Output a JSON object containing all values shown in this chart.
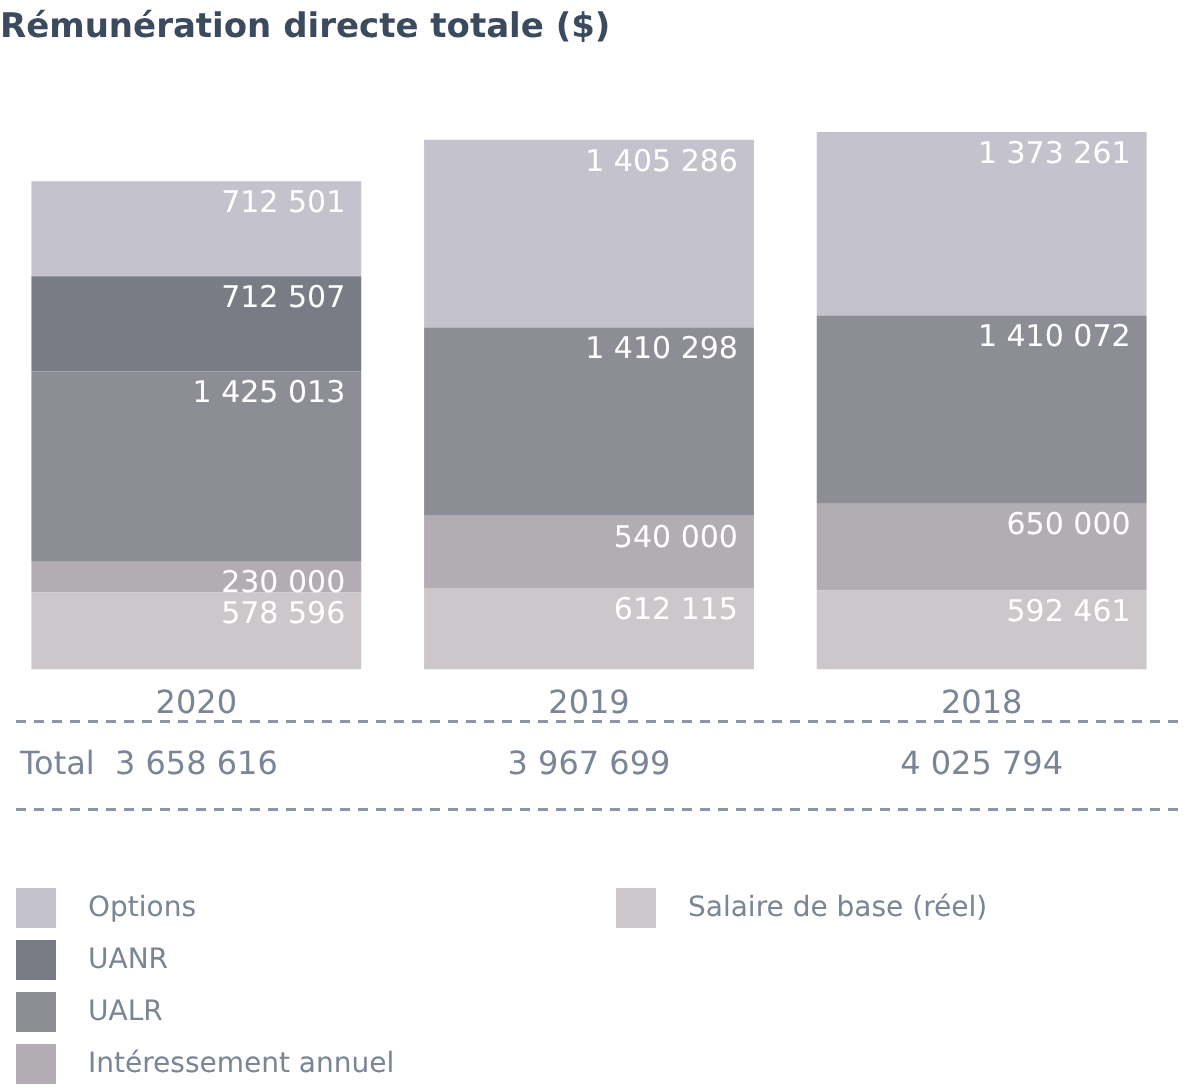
{
  "chart_data": {
    "type": "bar",
    "title": "Rémunération directe totale ($)",
    "stacked": true,
    "categories": [
      "2020",
      "2019",
      "2018"
    ],
    "series": [
      {
        "name": "Salaire de base (réel)",
        "color": "#cbc7ca",
        "values": [
          578596,
          612115,
          592461
        ],
        "value_labels": [
          "578 596",
          "612 115",
          "592 461"
        ]
      },
      {
        "name": "Intéressement annuel",
        "color": "#b1adb2",
        "values": [
          230000,
          540000,
          650000
        ],
        "value_labels": [
          "230 000",
          "540 000",
          "650 000"
        ]
      },
      {
        "name": "UALR",
        "color": "#8d8e95",
        "values": [
          1425013,
          1410298,
          1410072
        ],
        "value_labels": [
          "1 425 013",
          "1 410 298",
          "1 410 072"
        ]
      },
      {
        "name": "UANR",
        "color": "#797c84",
        "values": [
          712507,
          null,
          null
        ],
        "value_labels": [
          "712 507",
          null,
          null
        ]
      },
      {
        "name": "Options",
        "color": "#c4c2cc",
        "values": [
          712501,
          1405286,
          1373261
        ],
        "value_labels": [
          "712 501",
          "1 405 286",
          "1 373 261"
        ]
      }
    ],
    "totals": [
      "3 658 616",
      "3 967 699",
      "4 025 794"
    ],
    "annotations": [
      "Total"
    ],
    "grid": false,
    "legend": "bottom",
    "tick_labels": "x"
  }
}
